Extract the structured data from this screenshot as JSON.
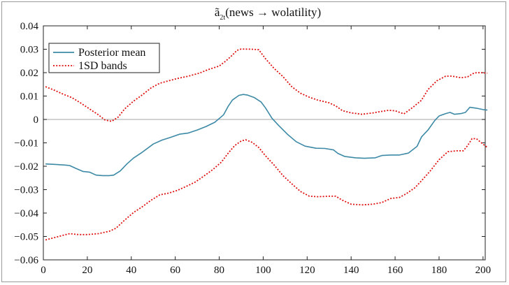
{
  "chart_data": {
    "type": "line",
    "title": "ã₂ₜ(news → wolatility)",
    "title_main": "ã",
    "title_sub": "2t",
    "title_rest": "(news → wolatility)",
    "xlabel": "",
    "ylabel": "",
    "xlim": [
      0,
      201
    ],
    "ylim": [
      -0.06,
      0.04
    ],
    "x_ticks": [
      0,
      20,
      40,
      60,
      80,
      100,
      120,
      140,
      160,
      180,
      200
    ],
    "x_tick_labels": [
      "0",
      "20",
      "40",
      "60",
      "80",
      "100",
      "120",
      "140",
      "160",
      "180",
      "200"
    ],
    "y_ticks": [
      -0.06,
      -0.05,
      -0.04,
      -0.03,
      -0.02,
      -0.01,
      0,
      0.01,
      0.02,
      0.03,
      0.04
    ],
    "y_tick_labels": [
      "−0.06",
      "−0.05",
      "−0.04",
      "−0.03",
      "−0.02",
      "−0.01",
      "0",
      "0.01",
      "0.02",
      "0.03",
      "0.04"
    ],
    "zero_line": true,
    "legend": {
      "placement": "top-left",
      "entries": [
        "Posterior mean",
        "1SD bands"
      ]
    },
    "series": [
      {
        "name": "Posterior mean",
        "color": "#3d8aa6",
        "style": "solid",
        "points": [
          [
            1,
            -0.019
          ],
          [
            5,
            -0.0192
          ],
          [
            10,
            -0.0195
          ],
          [
            12,
            -0.0197
          ],
          [
            15,
            -0.021
          ],
          [
            18,
            -0.0222
          ],
          [
            21,
            -0.0225
          ],
          [
            24,
            -0.0238
          ],
          [
            27,
            -0.024
          ],
          [
            30,
            -0.024
          ],
          [
            32,
            -0.0238
          ],
          [
            35,
            -0.022
          ],
          [
            38,
            -0.019
          ],
          [
            41,
            -0.0165
          ],
          [
            45,
            -0.014
          ],
          [
            50,
            -0.0105
          ],
          [
            54,
            -0.0088
          ],
          [
            58,
            -0.0076
          ],
          [
            62,
            -0.0063
          ],
          [
            66,
            -0.0058
          ],
          [
            70,
            -0.0045
          ],
          [
            74,
            -0.003
          ],
          [
            78,
            -0.0012
          ],
          [
            82,
            0.002
          ],
          [
            84,
            0.0055
          ],
          [
            86,
            0.0083
          ],
          [
            89,
            0.0103
          ],
          [
            91,
            0.0107
          ],
          [
            93,
            0.0104
          ],
          [
            96,
            0.0093
          ],
          [
            99,
            0.0075
          ],
          [
            101,
            0.005
          ],
          [
            104,
            0.0005
          ],
          [
            107,
            -0.0025
          ],
          [
            111,
            -0.0063
          ],
          [
            115,
            -0.0095
          ],
          [
            119,
            -0.0114
          ],
          [
            124,
            -0.0123
          ],
          [
            128,
            -0.0124
          ],
          [
            132,
            -0.013
          ],
          [
            134,
            -0.0145
          ],
          [
            137,
            -0.0158
          ],
          [
            142,
            -0.0164
          ],
          [
            146,
            -0.0166
          ],
          [
            151,
            -0.0164
          ],
          [
            154,
            -0.0154
          ],
          [
            158,
            -0.0152
          ],
          [
            162,
            -0.0152
          ],
          [
            166,
            -0.0144
          ],
          [
            170,
            -0.0115
          ],
          [
            172,
            -0.0075
          ],
          [
            175,
            -0.0045
          ],
          [
            178,
            -0.0005
          ],
          [
            180,
            0.0015
          ],
          [
            183,
            0.0025
          ],
          [
            185,
            0.003
          ],
          [
            187,
            0.0022
          ],
          [
            190,
            0.0025
          ],
          [
            192,
            0.003
          ],
          [
            194,
            0.0052
          ],
          [
            197,
            0.0048
          ],
          [
            200,
            0.0042
          ],
          [
            202,
            0.004
          ]
        ]
      },
      {
        "name": "1SD bands (upper)",
        "color": "#e01010",
        "style": "dotted",
        "points": [
          [
            1,
            0.014
          ],
          [
            5,
            0.0125
          ],
          [
            9,
            0.0108
          ],
          [
            13,
            0.0093
          ],
          [
            17,
            0.007
          ],
          [
            21,
            0.0045
          ],
          [
            25,
            0.002
          ],
          [
            28,
            -0.0002
          ],
          [
            31,
            -0.0008
          ],
          [
            34,
            0.001
          ],
          [
            37,
            0.0045
          ],
          [
            41,
            0.0078
          ],
          [
            45,
            0.0105
          ],
          [
            49,
            0.0135
          ],
          [
            53,
            0.0155
          ],
          [
            57,
            0.0165
          ],
          [
            61,
            0.0175
          ],
          [
            66,
            0.0185
          ],
          [
            71,
            0.0198
          ],
          [
            75,
            0.0213
          ],
          [
            80,
            0.0228
          ],
          [
            83,
            0.025
          ],
          [
            86,
            0.0275
          ],
          [
            88,
            0.0295
          ],
          [
            90,
            0.0301
          ],
          [
            95,
            0.03
          ],
          [
            98,
            0.0298
          ],
          [
            101,
            0.026
          ],
          [
            105,
            0.0218
          ],
          [
            109,
            0.0183
          ],
          [
            113,
            0.014
          ],
          [
            117,
            0.0112
          ],
          [
            121,
            0.0095
          ],
          [
            125,
            0.0082
          ],
          [
            130,
            0.0071
          ],
          [
            133,
            0.0058
          ],
          [
            136,
            0.0038
          ],
          [
            140,
            0.0028
          ],
          [
            145,
            0.0022
          ],
          [
            150,
            0.0028
          ],
          [
            153,
            0.0033
          ],
          [
            157,
            0.0039
          ],
          [
            160,
            0.0037
          ],
          [
            164,
            0.0024
          ],
          [
            168,
            0.0051
          ],
          [
            172,
            0.0082
          ],
          [
            175,
            0.0128
          ],
          [
            179,
            0.0165
          ],
          [
            183,
            0.0185
          ],
          [
            186,
            0.0185
          ],
          [
            190,
            0.0178
          ],
          [
            193,
            0.0182
          ],
          [
            196,
            0.0199
          ],
          [
            199,
            0.02
          ],
          [
            202,
            0.0198
          ]
        ]
      },
      {
        "name": "1SD bands (lower)",
        "color": "#e01010",
        "style": "dotted",
        "points": [
          [
            1,
            -0.0515
          ],
          [
            5,
            -0.0505
          ],
          [
            9,
            -0.0495
          ],
          [
            12,
            -0.0488
          ],
          [
            16,
            -0.0492
          ],
          [
            20,
            -0.0492
          ],
          [
            25,
            -0.0488
          ],
          [
            30,
            -0.0478
          ],
          [
            33,
            -0.0465
          ],
          [
            37,
            -0.043
          ],
          [
            41,
            -0.0398
          ],
          [
            45,
            -0.0373
          ],
          [
            49,
            -0.0345
          ],
          [
            53,
            -0.0322
          ],
          [
            57,
            -0.0315
          ],
          [
            61,
            -0.0303
          ],
          [
            65,
            -0.0286
          ],
          [
            69,
            -0.0268
          ],
          [
            73,
            -0.0242
          ],
          [
            77,
            -0.0215
          ],
          [
            81,
            -0.0182
          ],
          [
            84,
            -0.0145
          ],
          [
            87,
            -0.0112
          ],
          [
            90,
            -0.0092
          ],
          [
            92,
            -0.0087
          ],
          [
            95,
            -0.0098
          ],
          [
            98,
            -0.012
          ],
          [
            101,
            -0.0155
          ],
          [
            105,
            -0.0195
          ],
          [
            109,
            -0.024
          ],
          [
            113,
            -0.0275
          ],
          [
            117,
            -0.0308
          ],
          [
            121,
            -0.0328
          ],
          [
            125,
            -0.033
          ],
          [
            130,
            -0.0328
          ],
          [
            133,
            -0.0328
          ],
          [
            136,
            -0.0345
          ],
          [
            140,
            -0.0362
          ],
          [
            145,
            -0.0365
          ],
          [
            150,
            -0.0362
          ],
          [
            154,
            -0.0355
          ],
          [
            158,
            -0.0338
          ],
          [
            162,
            -0.0333
          ],
          [
            165,
            -0.0318
          ],
          [
            169,
            -0.0292
          ],
          [
            172,
            -0.0262
          ],
          [
            176,
            -0.022
          ],
          [
            180,
            -0.0172
          ],
          [
            184,
            -0.0138
          ],
          [
            188,
            -0.0134
          ],
          [
            191,
            -0.0134
          ],
          [
            193,
            -0.0112
          ],
          [
            195,
            -0.0082
          ],
          [
            197,
            -0.0082
          ],
          [
            199,
            -0.0098
          ],
          [
            202,
            -0.012
          ]
        ]
      }
    ]
  }
}
